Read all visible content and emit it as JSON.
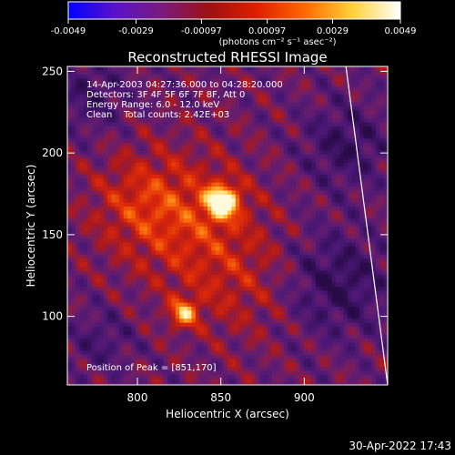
{
  "colorbar": {
    "tick_labels": [
      "-0.0049",
      "-0.0029",
      "-0.00097",
      "0.00097",
      "0.0029",
      "0.0049"
    ],
    "tick_values": [
      -0.0049,
      -0.0029,
      -0.00097,
      0.00097,
      0.0029,
      0.0049
    ],
    "range": [
      -0.0049,
      0.0049
    ],
    "unit_label": "(photons cm⁻² s⁻¹ asec⁻²)",
    "colors": [
      "#0000ff",
      "#5a14c8",
      "#7a1a7a",
      "#a01010",
      "#e02000",
      "#ff6a00",
      "#ffd23c",
      "#ffffff"
    ]
  },
  "chart_data": {
    "type": "heatmap",
    "title": "Reconstructed RHESSI Image",
    "xlabel": "Heliocentric X (arcsec)",
    "ylabel": "Heliocentric Y (arcsec)",
    "xlim": [
      758,
      950
    ],
    "ylim": [
      58,
      253
    ],
    "x_ticks": [
      800,
      850,
      900
    ],
    "y_ticks": [
      100,
      150,
      200,
      250
    ],
    "info_lines": [
      "14-Apr-2003 04:27:36.000 to 04:28:20.000",
      "Detectors: 3F 4F 5F 6F 7F 8F, Att 0",
      "Energy Range: 6.0 - 12.0 keV",
      "Clean    Total counts: 2.42E+03"
    ],
    "peak_text": "Position of Peak = [851,170]",
    "peak": [
      851,
      170
    ],
    "secondary_peak": [
      828,
      102
    ],
    "limb_line": [
      [
        925,
        253
      ],
      [
        950,
        58
      ]
    ],
    "colors": {
      "void": "#4b1676",
      "low": "#7a1f6e",
      "mid": "#c81e0a",
      "high": "#ff7a00",
      "peak": "#fff4b0"
    }
  },
  "footer": {
    "timestamp": "30-Apr-2022 17:43"
  }
}
